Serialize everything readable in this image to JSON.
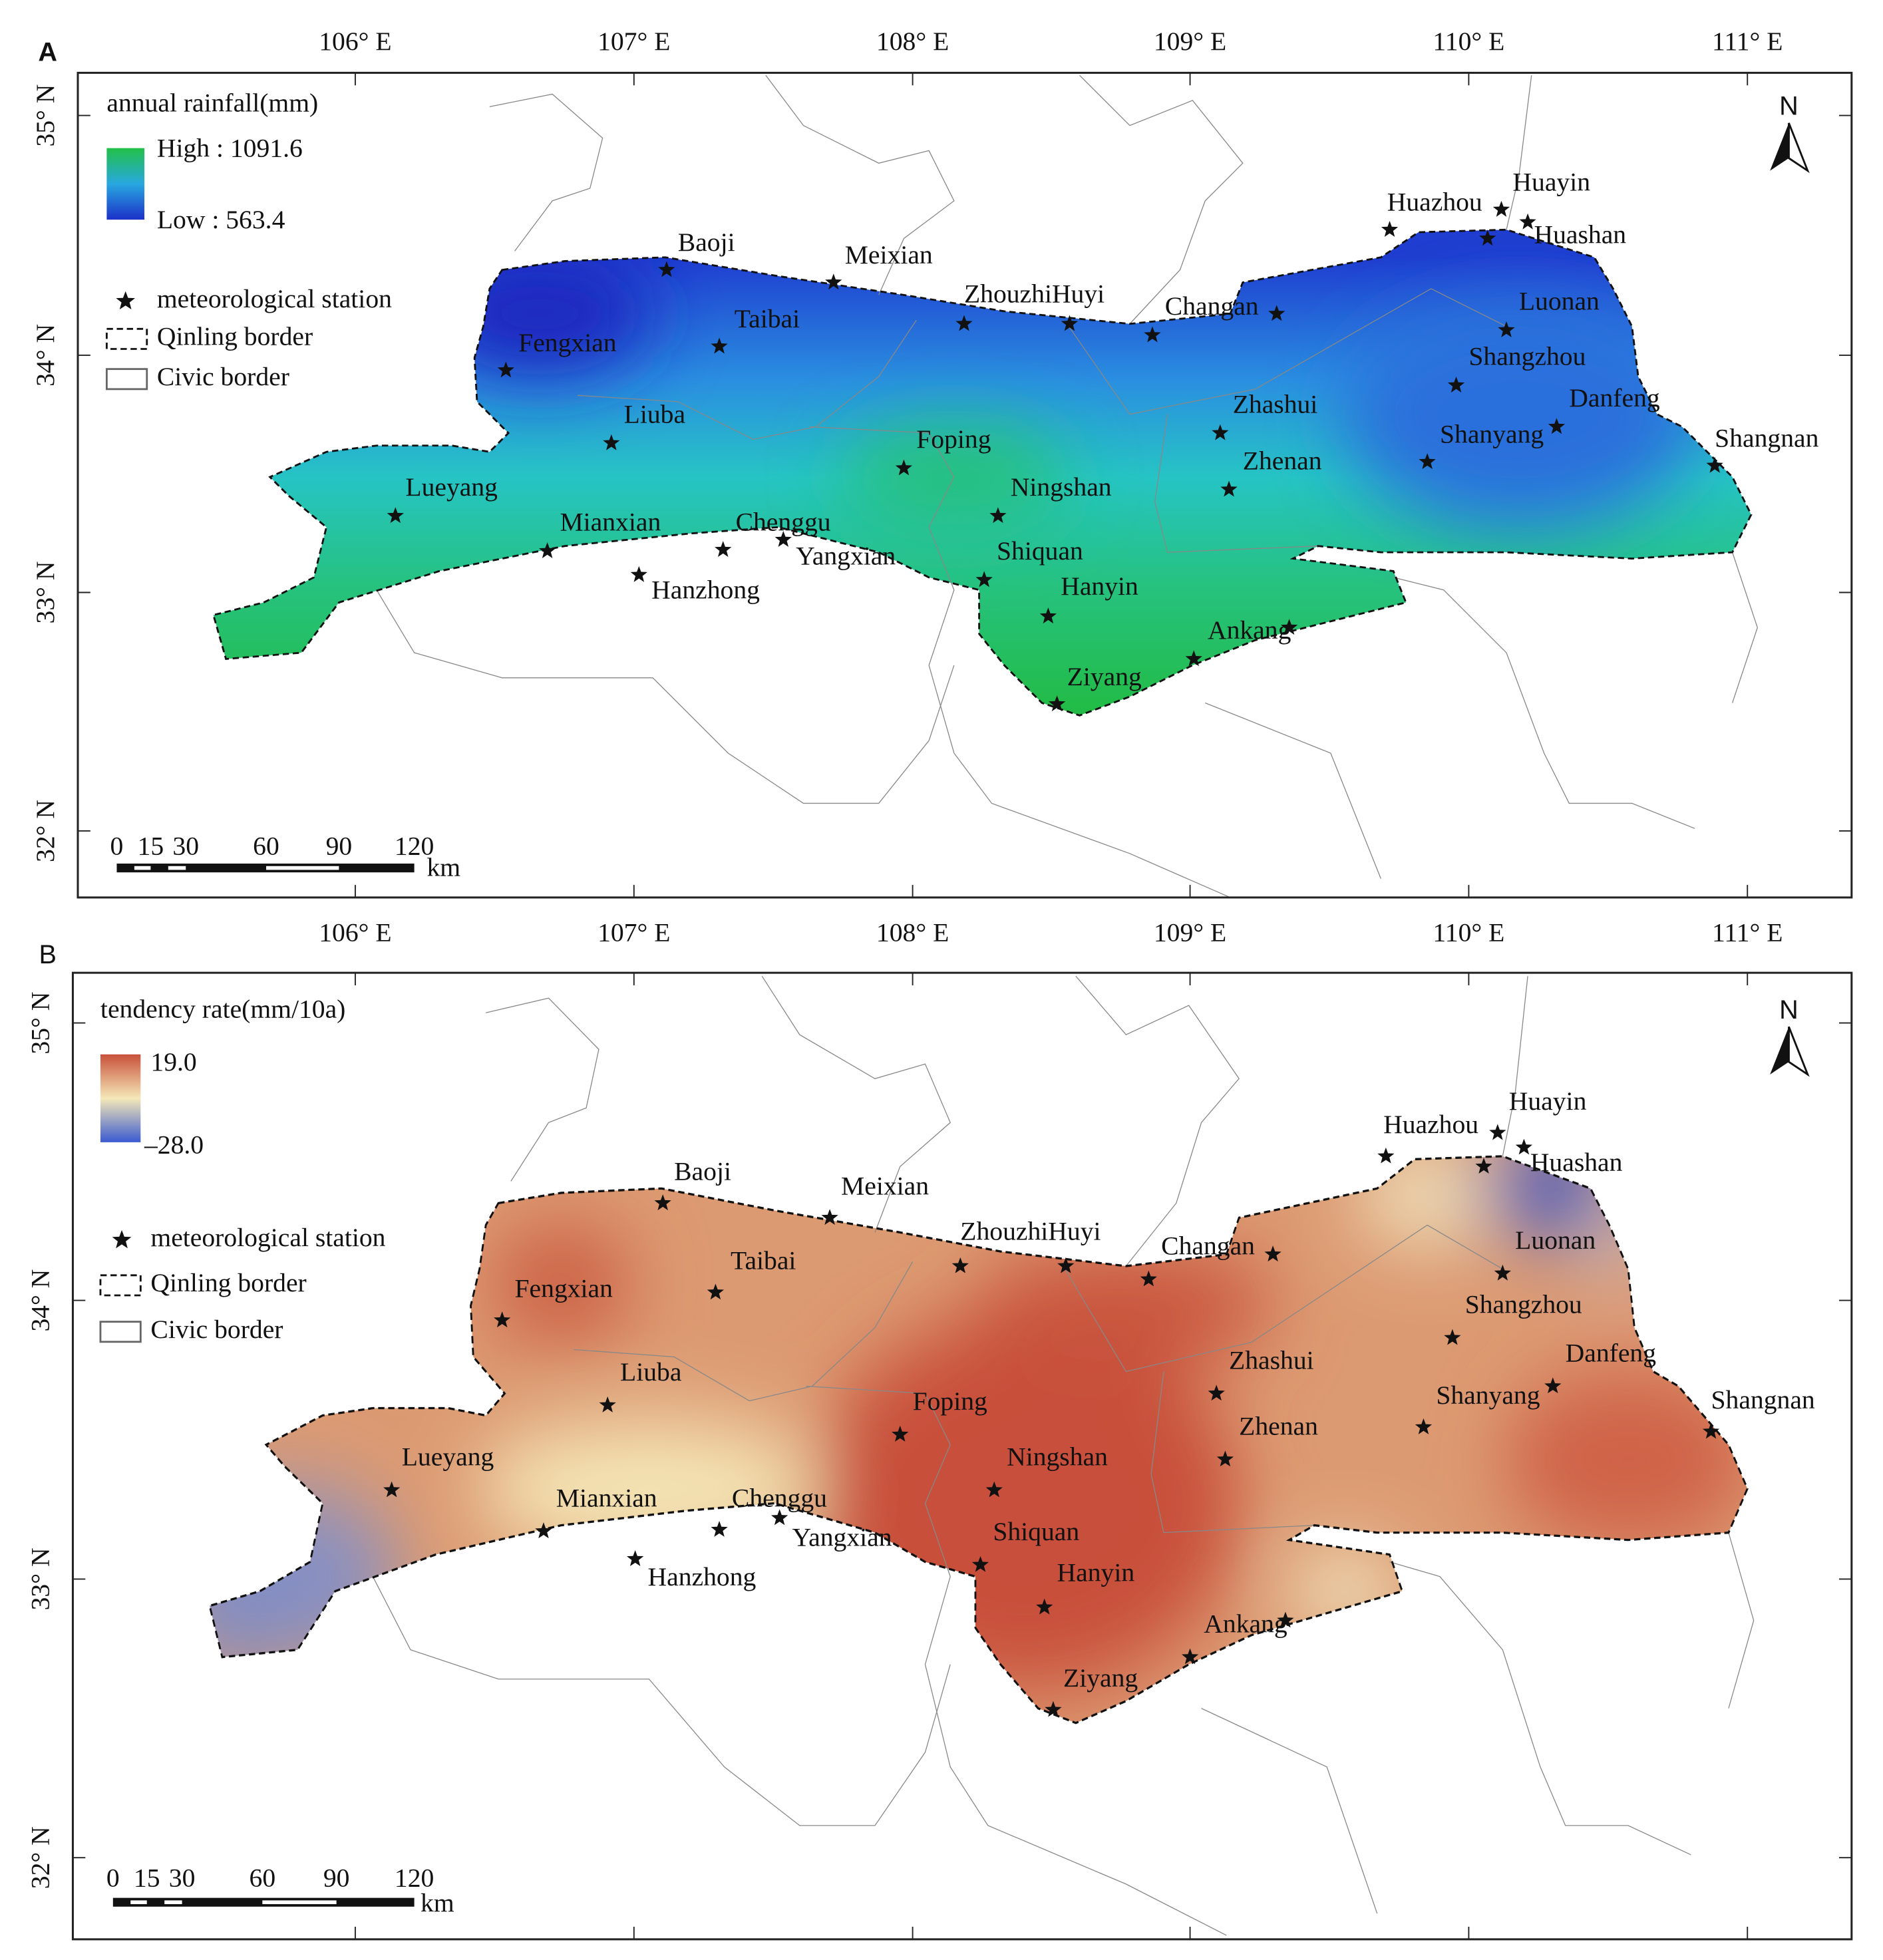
{
  "panels": [
    {
      "label": "A",
      "longitudes": [
        "106° E",
        "107° E",
        "108° E",
        "109° E",
        "110° E",
        "111° E"
      ],
      "latitudes": [
        "35° N",
        "34° N",
        "33° N",
        "32° N"
      ],
      "legend": {
        "title": "annual rainfall(mm)",
        "high": "High : 1091.6",
        "low": "Low : 563.4",
        "station": "meteorological station",
        "qinling": "Qinling border",
        "civic": "Civic border"
      },
      "stations": [
        "Huazhou",
        "Huayin",
        "Huashan",
        "Baoji",
        "Meixian",
        "ZhouzhiHuyi",
        "Changan",
        "Taibai",
        "Fengxian",
        "Luonan",
        "Shangzhou",
        "Zhashui",
        "Danfeng",
        "Shanyang",
        "Shangnan",
        "Liuba",
        "Foping",
        "Zhenan",
        "Ningshan",
        "Lueyang",
        "Mianxian",
        "Chenggu",
        "Yangxian",
        "Shiquan",
        "Hanzhong",
        "Hanyin",
        "Ankang",
        "Ziyang"
      ],
      "scale": [
        "0",
        "15",
        "30",
        "60",
        "90",
        "120"
      ],
      "scale_unit": "km",
      "north": "N"
    },
    {
      "label": "B",
      "longitudes": [
        "106° E",
        "107° E",
        "108° E",
        "109° E",
        "110° E",
        "111° E"
      ],
      "latitudes": [
        "35° N",
        "34° N",
        "33° N",
        "32° N"
      ],
      "legend": {
        "title": "tendency rate(mm/10a)",
        "high": "19.0",
        "low": "–28.0",
        "station": "meteorological station",
        "qinling": "Qinling border",
        "civic": "Civic border"
      },
      "stations": [
        "Huazhou",
        "Huayin",
        "Huashan",
        "Baoji",
        "Meixian",
        "ZhouzhiHuyi",
        "Changan",
        "Taibai",
        "Fengxian",
        "Luonan",
        "Shangzhou",
        "Zhashui",
        "Danfeng",
        "Shanyang",
        "Shangnan",
        "Liuba",
        "Foping",
        "Zhenan",
        "Ningshan",
        "Lueyang",
        "Mianxian",
        "Chenggu",
        "Yangxian",
        "Shiquan",
        "Hanzhong",
        "Hanyin",
        "Ankang",
        "Ziyang"
      ],
      "scale": [
        "0",
        "15",
        "30",
        "60",
        "90",
        "120"
      ],
      "scale_unit": "km",
      "north": "N"
    }
  ]
}
